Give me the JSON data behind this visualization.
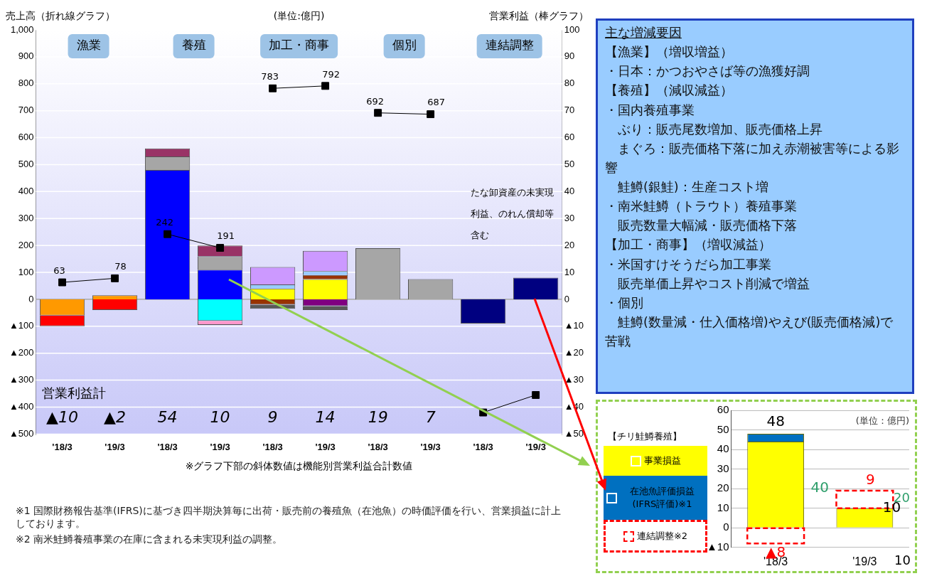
{
  "chart_data": [
    {
      "type": "bar",
      "ylabel": "売上高（折れ線グラフ）",
      "y2label": "営業利益（棒グラフ）",
      "categories": [
        "'18/3",
        "'19/3",
        "'18/3",
        "'19/3",
        "'18/3",
        "'19/3",
        "'18/3",
        "'19/3",
        "'18/3",
        "'19/3"
      ],
      "ylim": [
        -500,
        1000
      ],
      "yticks": [
        {
          "value": 1000,
          "label": "1,000"
        },
        900,
        800,
        700,
        600,
        500,
        400,
        300,
        200,
        100,
        0,
        {
          "value": -100,
          "label": "▲100"
        },
        {
          "value": -200,
          "label": "▲200"
        },
        {
          "value": -300,
          "label": "▲300"
        },
        {
          "value": -400,
          "label": "▲400"
        },
        {
          "value": -500,
          "label": "▲500"
        }
      ],
      "y2lim": [
        -50,
        100
      ],
      "y2ticks": [
        100,
        90,
        80,
        70,
        60,
        50,
        40,
        30,
        20,
        10,
        0,
        {
          "value": -10,
          "label": "▲10"
        },
        {
          "value": -20,
          "label": "▲20"
        },
        {
          "value": -30,
          "label": "▲30"
        },
        {
          "value": -40,
          "label": "▲40"
        },
        {
          "value": -50,
          "label": "▲50"
        }
      ],
      "stacked": true,
      "marker": "square",
      "grid": "y",
      "annotations": [
        "漁業",
        "養殖",
        "加工・商事",
        "個別",
        "連結調整",
        "(単位:億円)",
        "営業利益計",
        "たな卸資産の未実現利益、のれん償却等含む",
        "※グラフ下部の斜体数値は機能別営業利益合計数値",
        "※1 国際財務報告基準(IFRS)に基づき四半期決算毎に出荷・販売前の養殖魚（在池魚）の時価評価を行い、営業損益に計上しております。",
        "※2 南米鮭鱒養殖事業の在庫に含まれる未実現利益の調整。",
        "▲10",
        "▲2",
        "54",
        "10",
        "9",
        "14",
        "19",
        "7"
      ],
      "series": [
        {
          "type": "bar",
          "axis": "y2",
          "color": "#ff9900",
          "values": [
            -6,
            1.5,
            null,
            null,
            null,
            null,
            null,
            null,
            null,
            null
          ]
        },
        {
          "type": "bar",
          "axis": "y2",
          "color": "#ff0000",
          "values": [
            -4,
            -4,
            null,
            null,
            null,
            null,
            null,
            null,
            null,
            null
          ]
        },
        {
          "type": "bar",
          "axis": "y2",
          "color": "#0000ff",
          "values": [
            null,
            null,
            48,
            11,
            null,
            null,
            null,
            null,
            null,
            null
          ]
        },
        {
          "type": "bar",
          "axis": "y2",
          "color": "#a6a6a6",
          "values": [
            null,
            null,
            5,
            5,
            null,
            null,
            19,
            7.5,
            null,
            null
          ]
        },
        {
          "type": "bar",
          "axis": "y2",
          "color": "#993366",
          "values": [
            null,
            null,
            3,
            4,
            null,
            null,
            null,
            null,
            null,
            null
          ]
        },
        {
          "type": "bar",
          "axis": "y2",
          "color": "#00ffff",
          "values": [
            null,
            null,
            null,
            -8,
            null,
            null,
            null,
            null,
            null,
            null
          ]
        },
        {
          "type": "bar",
          "axis": "y2",
          "color": "#ff99cc",
          "values": [
            null,
            null,
            null,
            -1.5,
            null,
            null,
            null,
            null,
            null,
            null
          ]
        },
        {
          "type": "bar",
          "axis": "y2",
          "color": "#ffff00",
          "values": [
            null,
            null,
            null,
            null,
            4,
            7.5,
            null,
            null,
            null,
            null
          ]
        },
        {
          "type": "bar",
          "axis": "y2",
          "color": "#993300",
          "values": [
            null,
            null,
            null,
            null,
            -2,
            1.5,
            null,
            null,
            null,
            null
          ]
        },
        {
          "type": "bar",
          "axis": "y2",
          "color": "#99ccff",
          "values": [
            null,
            null,
            null,
            null,
            1.5,
            1.5,
            null,
            null,
            null,
            null
          ]
        },
        {
          "type": "bar",
          "axis": "y2",
          "color": "#cc99ff",
          "values": [
            null,
            null,
            null,
            null,
            6.5,
            7.5,
            null,
            null,
            null,
            null
          ]
        },
        {
          "type": "bar",
          "axis": "y2",
          "color": "#800080",
          "values": [
            null,
            null,
            null,
            null,
            null,
            -2.5,
            null,
            null,
            null,
            null
          ]
        },
        {
          "type": "bar",
          "axis": "y2",
          "color": "#595959",
          "values": [
            null,
            null,
            null,
            null,
            -1.5,
            -1.5,
            null,
            null,
            null,
            null
          ]
        },
        {
          "type": "bar",
          "axis": "y2",
          "color": "#000080",
          "values": [
            null,
            null,
            null,
            null,
            null,
            null,
            null,
            null,
            -9,
            8
          ]
        },
        {
          "type": "line",
          "color": "#000000",
          "values": [
            63,
            78,
            null,
            null,
            null,
            null,
            null,
            null,
            null,
            null
          ],
          "value_labels": [
            "63",
            "78",
            null,
            null,
            null,
            null,
            null,
            null,
            null,
            null
          ]
        },
        {
          "type": "line",
          "color": "#000000",
          "values": [
            null,
            null,
            242,
            191,
            null,
            null,
            null,
            null,
            null,
            null
          ],
          "value_labels": [
            null,
            null,
            "242",
            "191",
            null,
            null,
            null,
            null,
            null,
            null
          ]
        },
        {
          "type": "line",
          "color": "#000000",
          "values": [
            null,
            null,
            null,
            null,
            783,
            792,
            null,
            null,
            null,
            null
          ],
          "value_labels": [
            null,
            null,
            null,
            null,
            "783",
            "792",
            null,
            null,
            null,
            null
          ]
        },
        {
          "type": "line",
          "color": "#000000",
          "values": [
            null,
            null,
            null,
            null,
            null,
            null,
            692,
            687,
            null,
            null
          ],
          "value_labels": [
            null,
            null,
            null,
            null,
            null,
            null,
            "692",
            "687",
            null,
            null
          ]
        },
        {
          "type": "line",
          "color": "#000000",
          "values": [
            null,
            null,
            null,
            null,
            null,
            null,
            null,
            null,
            -420,
            -355
          ]
        }
      ]
    },
    {
      "type": "other",
      "title": "主な増減要因",
      "annotations": [
        "【漁業】（増収増益）",
        "・日本：かつおやさば等の漁獲好調",
        "【養殖】（減収減益）",
        "・国内養殖事業",
        "　ぶり：販売尾数増加、販売価格上昇",
        "　まぐろ：販売価格下落に加え赤潮被害等による影響",
        "　鮭鱒(銀鮭)：生産コスト増",
        "・南米鮭鱒（トラウト）養殖事業",
        "　販売数量大幅減・販売価格下落",
        "【加工・商事】（増収減益）",
        "・米国すけそうだら加工事業",
        "　販売単価上昇やコスト削減で増益",
        "・個別",
        "　鮭鱒(数量減・仕入価格増)やえび(販売価格減)で苦戦"
      ]
    },
    {
      "type": "bar",
      "title": "【チリ鮭鱒養殖】",
      "categories": [
        "'18/3",
        "'19/3"
      ],
      "stacked": true,
      "legend": "left",
      "grid": "y",
      "ylim": [
        -10,
        60
      ],
      "yticks": [
        60,
        50,
        40,
        30,
        20,
        10,
        0,
        {
          "value": -10,
          "label": "▲10"
        }
      ],
      "annotations": [
        "(単位：億円)",
        "48",
        "▲8",
        "9",
        "40",
        "20",
        "10",
        "10"
      ],
      "series": [
        {
          "name": "事業損益",
          "color": "#ffff00",
          "values": [
            44,
            10
          ]
        },
        {
          "name": "在池魚評価損益(IFRS評価)※1",
          "color": "#0070c0",
          "values": [
            4,
            null
          ]
        },
        {
          "name": "連結調整※2",
          "color": "#ff0000",
          "line_style": "dashed",
          "values": [
            -8,
            9
          ]
        }
      ]
    }
  ]
}
